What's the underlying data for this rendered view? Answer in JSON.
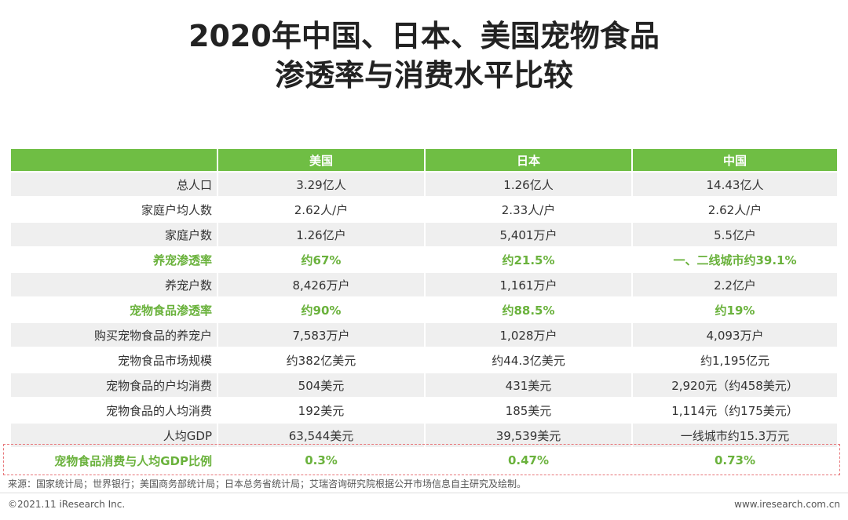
{
  "title": {
    "line1": "2020年中国、日本、美国宠物食品",
    "line2": "渗透率与消费水平比较"
  },
  "table": {
    "headers": [
      "",
      "美国",
      "日本",
      "中国"
    ],
    "rows": [
      {
        "label": "总人口",
        "us": "3.29亿人",
        "jp": "1.26亿人",
        "cn": "14.43亿人",
        "highlight": false
      },
      {
        "label": "家庭户均人数",
        "us": "2.62人/户",
        "jp": "2.33人/户",
        "cn": "2.62人/户",
        "highlight": false
      },
      {
        "label": "家庭户数",
        "us": "1.26亿户",
        "jp": "5,401万户",
        "cn": "5.5亿户",
        "highlight": false
      },
      {
        "label": "养宠渗透率",
        "us": "约67%",
        "jp": "约21.5%",
        "cn": "一、二线城市约39.1%",
        "highlight": true
      },
      {
        "label": "养宠户数",
        "us": "8,426万户",
        "jp": "1,161万户",
        "cn": "2.2亿户",
        "highlight": false
      },
      {
        "label": "宠物食品渗透率",
        "us": "约90%",
        "jp": "约88.5%",
        "cn": "约19%",
        "highlight": true
      },
      {
        "label": "购买宠物食品的养宠户",
        "us": "7,583万户",
        "jp": "1,028万户",
        "cn": "4,093万户",
        "highlight": false
      },
      {
        "label": "宠物食品市场规模",
        "us": "约382亿美元",
        "jp": "约44.3亿美元",
        "cn": "约1,195亿元",
        "highlight": false
      },
      {
        "label": "宠物食品的户均消费",
        "us": "504美元",
        "jp": "431美元",
        "cn": "2,920元（约458美元）",
        "highlight": false
      },
      {
        "label": "宠物食品的人均消费",
        "us": "192美元",
        "jp": "185美元",
        "cn": "1,114元（约175美元）",
        "highlight": false
      },
      {
        "label": "人均GDP",
        "us": "63,544美元",
        "jp": "39,539美元",
        "cn": "一线城市约15.3万元",
        "highlight": false
      },
      {
        "label": "宠物食品消费与人均GDP比例",
        "us": "0.3%",
        "jp": "0.47%",
        "cn": "0.73%",
        "highlight": true
      }
    ]
  },
  "footer": {
    "source": "来源：国家统计局；世界银行；美国商务部统计局；日本总务省统计局；艾瑞咨询研究院根据公开市场信息自主研究及绘制。",
    "copyright": "©2021.11 iResearch Inc.",
    "website": "www.iresearch.com.cn"
  },
  "colors": {
    "header_green": "#6fbe44",
    "highlight_text": "#6ab23c",
    "row_shade": "#efefef",
    "dashed_border": "#e8767a"
  }
}
